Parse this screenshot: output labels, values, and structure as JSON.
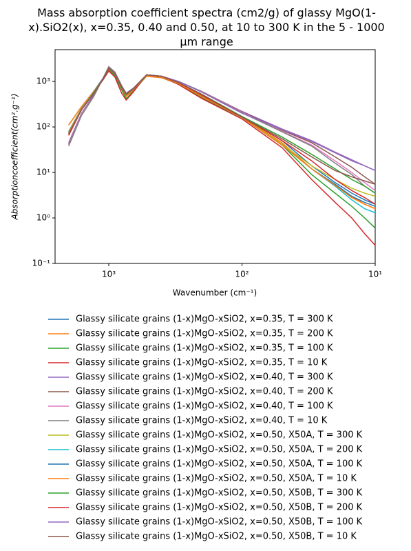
{
  "chart_data": {
    "type": "line",
    "title": "Mass absorption coefficient spectra (cm2/g) of glassy MgO(1-x).SiO2(x), x=0.35, 0.40 and 0.50, at 10 to 300 K in the 5 - 1000 μm range",
    "x_label": "Wavenumber (cm⁻¹)",
    "y_label": "Absorptioncoefficient(cm².g⁻¹)",
    "xscale": "log",
    "yscale": "log",
    "xlim": [
      2530,
      10
    ],
    "ylim": [
      0.1,
      5000
    ],
    "xticks": [
      {
        "value": 1000,
        "label": "10³"
      },
      {
        "value": 100,
        "label": "10²"
      },
      {
        "value": 10,
        "label": "10¹"
      }
    ],
    "yticks": [
      {
        "value": 0.1,
        "label": "10⁻¹"
      },
      {
        "value": 1,
        "label": "10⁰"
      },
      {
        "value": 10,
        "label": "10¹"
      },
      {
        "value": 100,
        "label": "10²"
      },
      {
        "value": 1000,
        "label": "10³"
      }
    ],
    "x": [
      2000,
      1600,
      1300,
      1100,
      1000,
      900,
      800,
      740,
      650,
      520,
      400,
      300,
      200,
      100,
      50,
      30,
      20,
      15,
      12,
      10
    ],
    "series": [
      {
        "name": "Glassy silicate grains (1-x)MgO-xSiO2, x=0.35, T = 300 K",
        "color": "#1f77b4",
        "values": [
          110,
          280,
          600,
          1200,
          1900,
          1400,
          700,
          480,
          650,
          1350,
          1250,
          900,
          450,
          170,
          50,
          14,
          6,
          3.5,
          2.5,
          2.0
        ]
      },
      {
        "name": "Glassy silicate grains (1-x)MgO-xSiO2, x=0.35, T = 200 K",
        "color": "#ff7f0e",
        "values": [
          110,
          280,
          600,
          1150,
          1800,
          1350,
          700,
          470,
          640,
          1300,
          1200,
          880,
          440,
          165,
          45,
          12,
          5,
          3,
          2,
          1.6
        ]
      },
      {
        "name": "Glassy silicate grains (1-x)MgO-xSiO2, x=0.35, T = 100 K",
        "color": "#2ca02c",
        "values": [
          70,
          250,
          580,
          1150,
          1800,
          1350,
          650,
          420,
          620,
          1350,
          1250,
          880,
          430,
          160,
          40,
          9,
          3.5,
          1.8,
          1.0,
          0.6
        ]
      },
      {
        "name": "Glassy silicate grains (1-x)MgO-xSiO2, x=0.35, T = 10 K",
        "color": "#d62728",
        "values": [
          65,
          240,
          560,
          1100,
          1700,
          1250,
          550,
          390,
          600,
          1400,
          1250,
          860,
          420,
          150,
          35,
          7,
          2.2,
          1.0,
          0.45,
          0.25
        ]
      },
      {
        "name": "Glassy silicate grains (1-x)MgO-xSiO2, x=0.40, T = 300 K",
        "color": "#9467bd",
        "values": [
          45,
          200,
          500,
          1200,
          2100,
          1600,
          800,
          550,
          720,
          1400,
          1300,
          1000,
          600,
          220,
          90,
          50,
          28,
          19,
          14,
          11
        ]
      },
      {
        "name": "Glassy silicate grains (1-x)MgO-xSiO2, x=0.40, T = 200 K",
        "color": "#8c564b",
        "values": [
          42,
          190,
          480,
          1200,
          2100,
          1600,
          800,
          550,
          720,
          1400,
          1300,
          1000,
          600,
          215,
          85,
          45,
          22,
          13,
          8,
          5.5
        ]
      },
      {
        "name": "Glassy silicate grains (1-x)MgO-xSiO2, x=0.40, T = 100 K",
        "color": "#e377c2",
        "values": [
          40,
          190,
          470,
          1200,
          2100,
          1600,
          800,
          550,
          720,
          1400,
          1300,
          1000,
          600,
          210,
          80,
          40,
          18,
          10,
          6,
          4
        ]
      },
      {
        "name": "Glassy silicate grains (1-x)MgO-xSiO2, x=0.40, T = 10 K",
        "color": "#7f7f7f",
        "values": [
          38,
          180,
          460,
          1200,
          2100,
          1600,
          800,
          550,
          720,
          1400,
          1300,
          1000,
          600,
          205,
          78,
          38,
          16,
          9,
          5,
          3.5
        ]
      },
      {
        "name": "Glassy silicate grains (1-x)MgO-xSiO2, x=0.50, X50A, T = 300 K",
        "color": "#bcbd22",
        "values": [
          80,
          260,
          560,
          1150,
          1900,
          1450,
          720,
          500,
          680,
          1350,
          1250,
          900,
          480,
          165,
          42,
          14,
          7,
          4.5,
          3.5,
          3
        ]
      },
      {
        "name": "Glassy silicate grains (1-x)MgO-xSiO2, x=0.50, X50A, T = 200 K",
        "color": "#17becf",
        "values": [
          78,
          255,
          550,
          1150,
          1900,
          1450,
          720,
          500,
          680,
          1350,
          1250,
          900,
          470,
          160,
          40,
          12,
          5,
          2.5,
          1.6,
          1.3
        ]
      },
      {
        "name": "Glassy silicate grains (1-x)MgO-xSiO2, x=0.50, X50A, T = 100 K",
        "color": "#1f77b4",
        "values": [
          76,
          250,
          550,
          1150,
          1900,
          1450,
          720,
          500,
          680,
          1350,
          1250,
          900,
          470,
          160,
          40,
          12,
          5.5,
          3,
          2.2,
          1.8
        ]
      },
      {
        "name": "Glassy silicate grains (1-x)MgO-xSiO2, x=0.50, X50A, T = 10 K",
        "color": "#ff7f0e",
        "values": [
          75,
          250,
          540,
          1150,
          1900,
          1450,
          720,
          500,
          680,
          1350,
          1250,
          900,
          470,
          160,
          40,
          12,
          5.2,
          2.8,
          2.0,
          1.6
        ]
      },
      {
        "name": "Glassy silicate grains (1-x)MgO-xSiO2, x=0.50, X50B, T = 300 K",
        "color": "#2ca02c",
        "values": [
          70,
          240,
          540,
          1150,
          1950,
          1500,
          750,
          520,
          700,
          1400,
          1300,
          950,
          520,
          170,
          60,
          25,
          12,
          7,
          5,
          3.5
        ]
      },
      {
        "name": "Glassy silicate grains (1-x)MgO-xSiO2, x=0.50, X50B, T = 200 K",
        "color": "#d62728",
        "values": [
          70,
          240,
          540,
          1150,
          1950,
          1500,
          750,
          520,
          700,
          1400,
          1300,
          950,
          500,
          165,
          50,
          18,
          7,
          4,
          2.8,
          2
        ]
      },
      {
        "name": "Glassy silicate grains (1-x)MgO-xSiO2, x=0.50, X50B, T = 100 K",
        "color": "#9467bd",
        "values": [
          70,
          240,
          540,
          1150,
          1950,
          1500,
          750,
          520,
          700,
          1400,
          1300,
          1000,
          580,
          200,
          88,
          48,
          27,
          18,
          14,
          11
        ]
      },
      {
        "name": "Glassy silicate grains (1-x)MgO-xSiO2, x=0.50, X50B, T = 10 K",
        "color": "#8c564b",
        "values": [
          70,
          240,
          540,
          1150,
          1950,
          1500,
          750,
          520,
          700,
          1400,
          1300,
          950,
          520,
          165,
          55,
          22,
          11,
          8,
          6.5,
          5.5
        ]
      }
    ]
  }
}
